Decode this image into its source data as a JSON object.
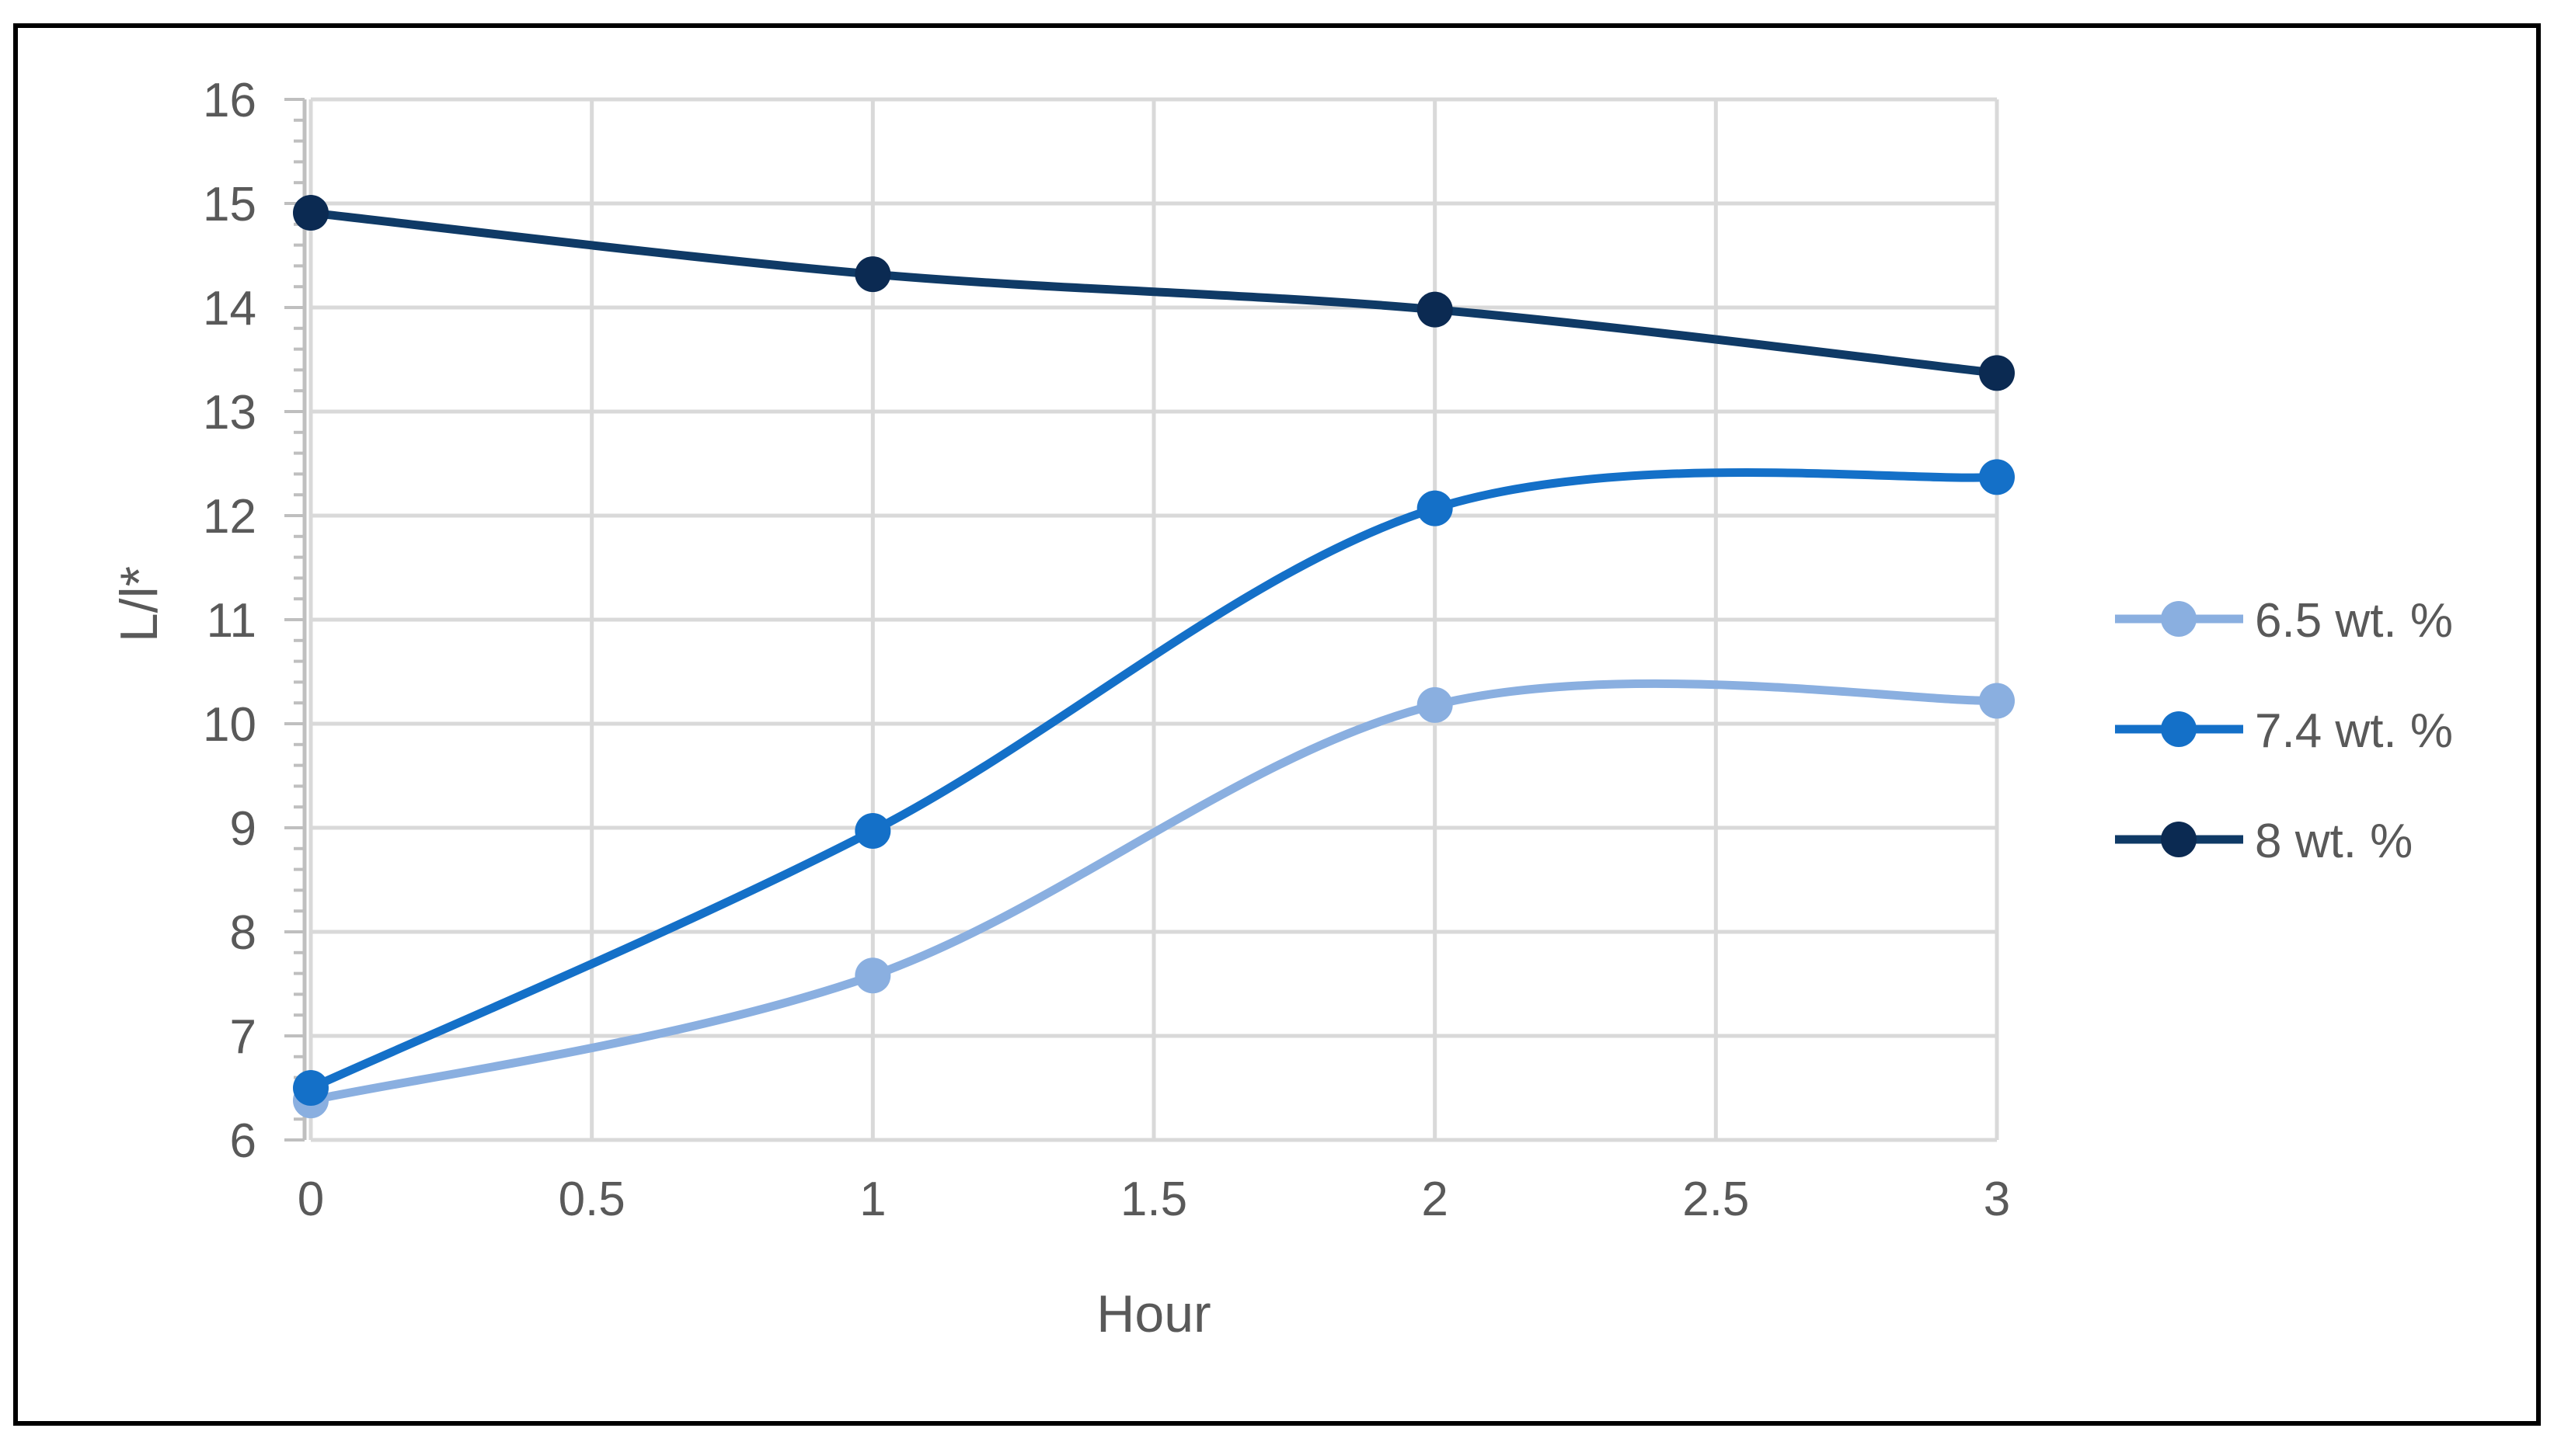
{
  "chart_data": {
    "type": "line",
    "smooth": true,
    "xlabel": "Hour",
    "ylabel": "L/l*",
    "xlim": [
      0,
      3
    ],
    "ylim": [
      6,
      16
    ],
    "x_ticks": [
      "0",
      "0.5",
      "1",
      "1.5",
      "2",
      "2.5",
      "3"
    ],
    "y_ticks": [
      "6",
      "7",
      "8",
      "9",
      "10",
      "11",
      "12",
      "13",
      "14",
      "15",
      "16"
    ],
    "grid": true,
    "legend_position": "right",
    "x": [
      0,
      1,
      2,
      3
    ],
    "series": [
      {
        "name": "6.5 wt. %",
        "color": "#8aafe0",
        "values": [
          6.38,
          7.58,
          10.18,
          10.22
        ]
      },
      {
        "name": "7.4 wt. %",
        "color": "#1470c8",
        "values": [
          6.5,
          8.97,
          12.07,
          12.37
        ]
      },
      {
        "name": "8 wt. %",
        "color": "#0f3a66",
        "marker_color": "#0b2a52",
        "values": [
          14.91,
          14.32,
          13.98,
          13.37
        ]
      }
    ]
  }
}
